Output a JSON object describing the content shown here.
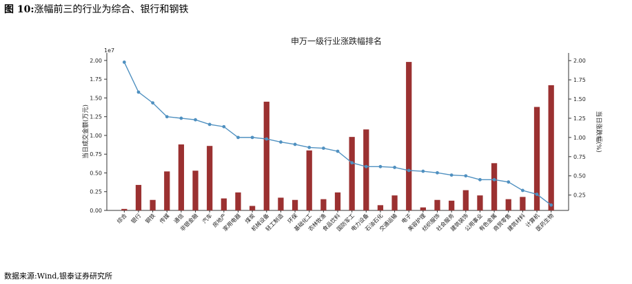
{
  "figure": {
    "number": "图 10:",
    "caption": "涨幅前三的行业为综合、银行和钢铁",
    "source": "数据来源:Wind,银泰证券研究所"
  },
  "chart_data": {
    "type": "bar+line",
    "title": "申万一级行业涨跌幅排名",
    "categories": [
      "综合",
      "银行",
      "钢铁",
      "传媒",
      "通信",
      "非银金融",
      "汽车",
      "房地产",
      "家用电器",
      "煤炭",
      "机械设备",
      "轻工制造",
      "环保",
      "基础化工",
      "农林牧渔",
      "食品饮料",
      "国防军工",
      "电力设备",
      "石油石化",
      "交通运输",
      "电子",
      "美容护理",
      "纺织服饰",
      "社会服务",
      "建筑装饰",
      "公用事业",
      "有色金属",
      "商贸零售",
      "建筑材料",
      "计算机",
      "医药生物"
    ],
    "y_left": {
      "label": "当日成交金额(万元)",
      "exponent": "1e7",
      "lim": [
        0,
        2.1
      ],
      "ticks": [
        "0.00",
        "0.25",
        "0.50",
        "0.75",
        "1.00",
        "1.25",
        "1.50",
        "1.75",
        "2.00"
      ]
    },
    "y_right": {
      "label": "当日涨跌幅(%)",
      "lim": [
        0.05,
        2.1
      ],
      "ticks": [
        "0.25",
        "0.50",
        "0.75",
        "1.00",
        "1.25",
        "1.50",
        "1.75",
        "2.00"
      ]
    },
    "series": [
      {
        "kind": "bar",
        "axis": "left",
        "color": "#9b3131",
        "values": [
          0.02,
          0.34,
          0.14,
          0.52,
          0.88,
          0.53,
          0.86,
          0.16,
          0.24,
          0.06,
          1.45,
          0.17,
          0.14,
          0.8,
          0.15,
          0.24,
          0.98,
          1.08,
          0.07,
          0.2,
          1.98,
          0.04,
          0.14,
          0.13,
          0.27,
          0.2,
          0.63,
          0.15,
          0.18,
          1.38,
          1.67
        ]
      },
      {
        "kind": "line",
        "axis": "right",
        "color": "#4f90c0",
        "values": [
          1.98,
          1.59,
          1.45,
          1.27,
          1.25,
          1.23,
          1.17,
          1.14,
          1.0,
          1.0,
          0.98,
          0.94,
          0.91,
          0.87,
          0.86,
          0.82,
          0.67,
          0.62,
          0.62,
          0.61,
          0.57,
          0.56,
          0.54,
          0.51,
          0.5,
          0.45,
          0.45,
          0.42,
          0.31,
          0.26,
          0.12
        ]
      }
    ],
    "grid": false,
    "legend": "none"
  }
}
